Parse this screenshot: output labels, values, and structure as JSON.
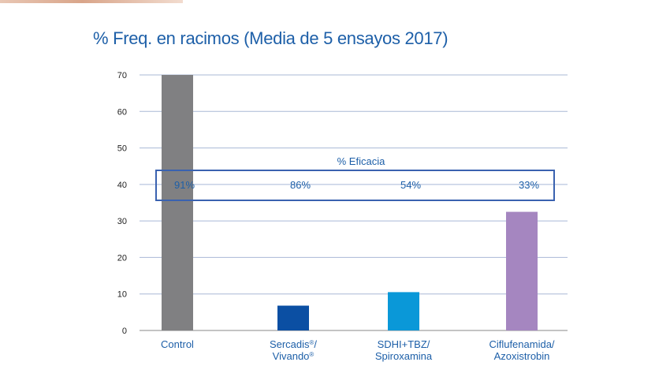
{
  "chart_data": {
    "type": "bar",
    "title": "% Freq. en racimos (Media de 5 ensayos 2017)",
    "categories": [
      {
        "lines": [
          [
            {
              "t": "Control"
            }
          ]
        ]
      },
      {
        "lines": [
          [
            {
              "t": "Sercadis"
            },
            {
              "t": "®",
              "sup": true
            },
            {
              "t": "/"
            }
          ],
          [
            {
              "t": "Vivando"
            },
            {
              "t": "®",
              "sup": true
            }
          ]
        ]
      },
      {
        "lines": [
          [
            {
              "t": "SDHI+TBZ/"
            }
          ],
          [
            {
              "t": "Spiroxamina"
            }
          ]
        ]
      },
      {
        "lines": [
          [
            {
              "t": "Ciflufenamida/"
            }
          ],
          [
            {
              "t": "Azoxistrobin"
            }
          ]
        ]
      }
    ],
    "values": [
      70,
      6.8,
      10.5,
      32.5
    ],
    "bar_colors": [
      "#808082",
      "#0b4fa3",
      "#0a98d8",
      "#a586c0"
    ],
    "ylim": [
      0,
      70
    ],
    "yticks": [
      0,
      10,
      20,
      30,
      40,
      50,
      60,
      70
    ],
    "grid": true,
    "annotation": {
      "title": "% Eficacia",
      "values": [
        "91%",
        "86%",
        "54%",
        "33%"
      ],
      "box_color": "#3a62b0"
    }
  }
}
